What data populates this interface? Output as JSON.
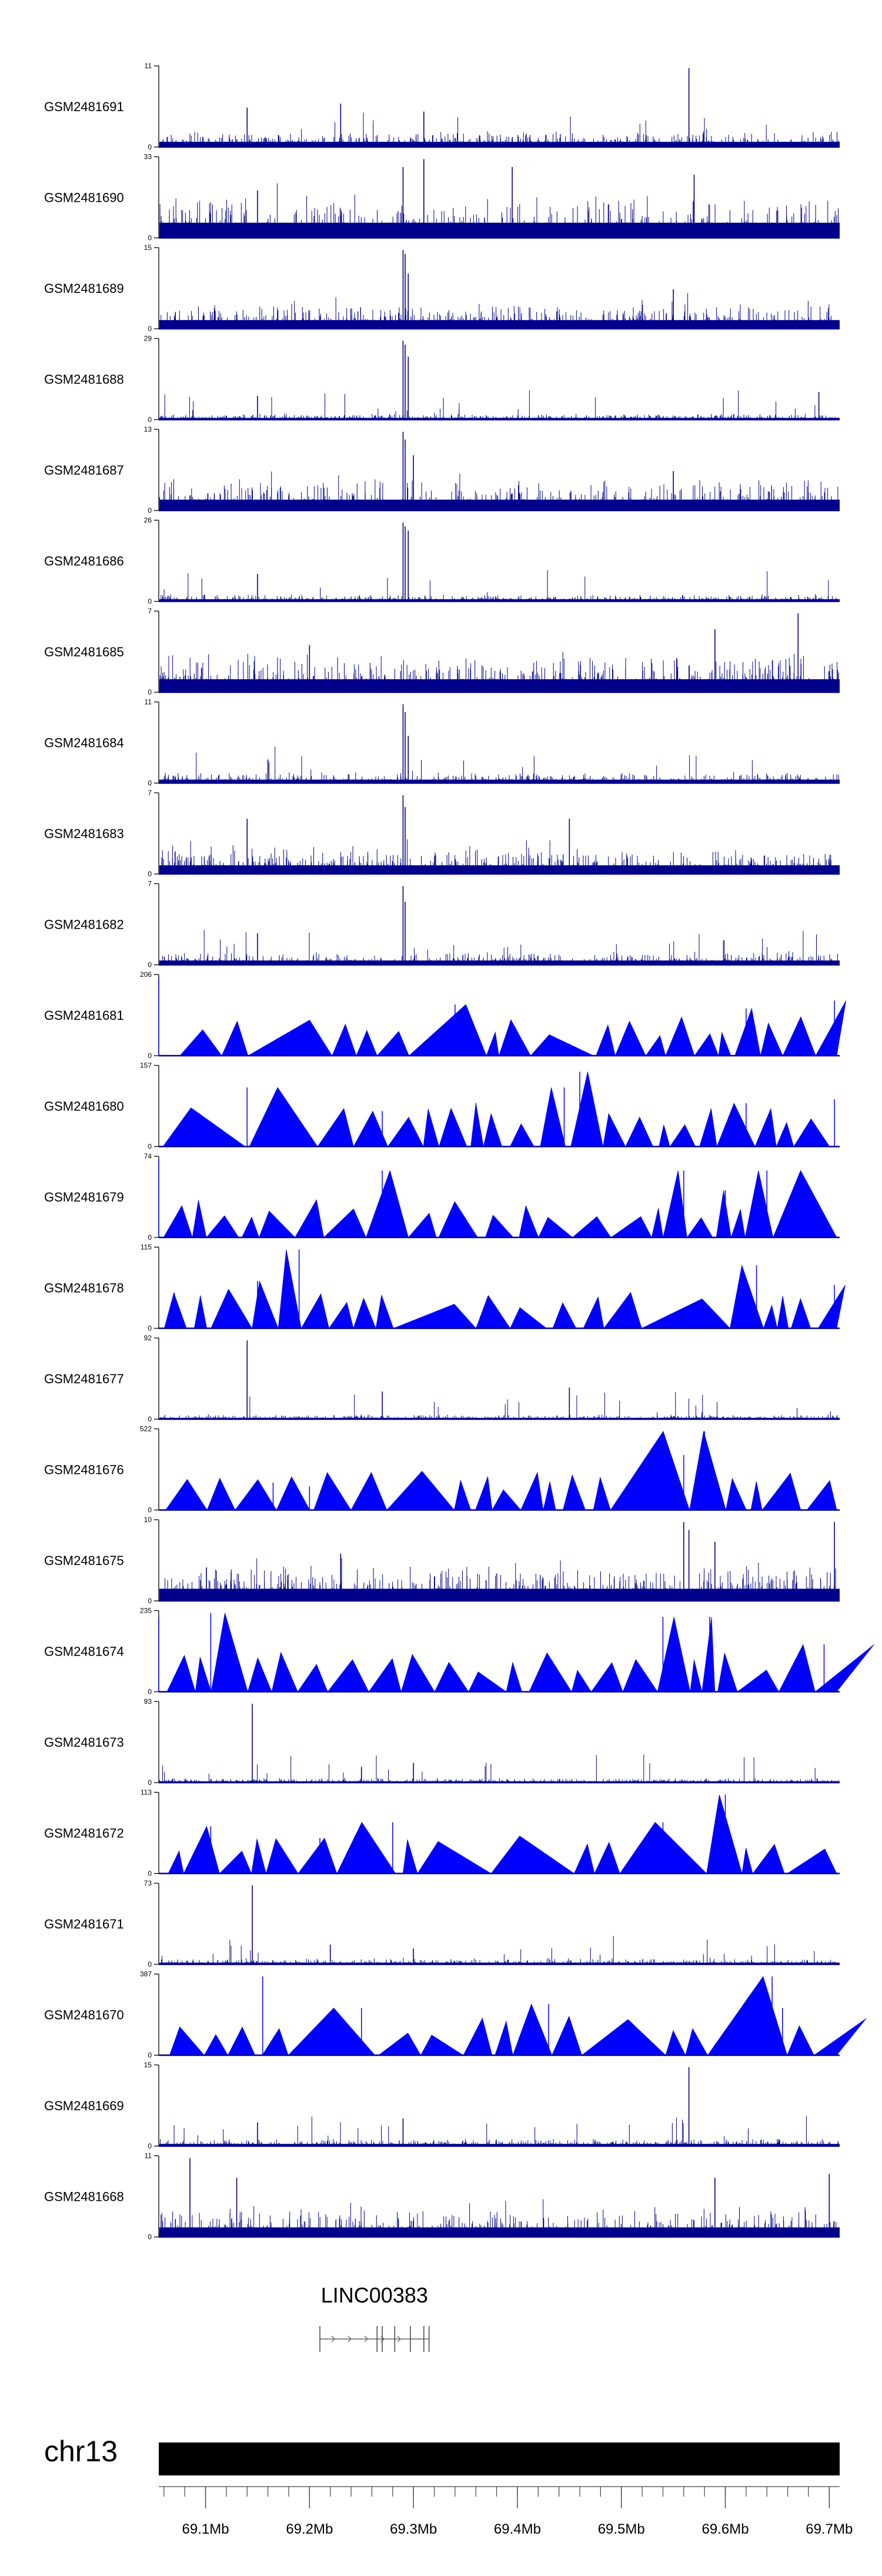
{
  "chart_data": {
    "type": "genome-browser-tracks",
    "chromosome": "chr13",
    "x_range_mb": [
      69.055,
      69.71
    ],
    "x_ticks": [
      "69.1Mb",
      "69.2Mb",
      "69.3Mb",
      "69.4Mb",
      "69.5Mb",
      "69.6Mb",
      "69.7Mb"
    ],
    "x_tick_values_mb": [
      69.1,
      69.2,
      69.3,
      69.4,
      69.5,
      69.6,
      69.7
    ],
    "colors": {
      "signal_dark": "#00008b",
      "signal_fill": "#0000ff",
      "axis": "#000000"
    },
    "tracks": [
      {
        "name": "GSM2481691",
        "ymax": 11,
        "style": "bars",
        "density": 0.55,
        "base": 0.12,
        "peaks": [
          [
            69.23,
            0.55
          ],
          [
            69.565,
            1.0
          ],
          [
            69.31,
            0.45
          ],
          [
            69.14,
            0.5
          ]
        ]
      },
      {
        "name": "GSM2481690",
        "ymax": 33,
        "style": "spiky",
        "density": 0.35,
        "base": 0.35,
        "peaks": [
          [
            69.31,
            1.0
          ],
          [
            69.29,
            0.9
          ],
          [
            69.395,
            0.9
          ],
          [
            69.57,
            0.8
          ],
          [
            69.15,
            0.6
          ]
        ]
      },
      {
        "name": "GSM2481689",
        "ymax": 15,
        "style": "bars",
        "density": 0.6,
        "base": 0.2,
        "peaks": [
          [
            69.29,
            1.0
          ],
          [
            69.292,
            0.95
          ],
          [
            69.295,
            0.7
          ],
          [
            69.55,
            0.5
          ]
        ]
      },
      {
        "name": "GSM2481688",
        "ymax": 29,
        "style": "bars",
        "density": 0.45,
        "base": 0.04,
        "peaks": [
          [
            69.29,
            1.0
          ],
          [
            69.292,
            0.95
          ],
          [
            69.295,
            0.8
          ],
          [
            69.15,
            0.3
          ],
          [
            69.69,
            0.35
          ]
        ]
      },
      {
        "name": "GSM2481687",
        "ymax": 13,
        "style": "bars",
        "density": 0.6,
        "base": 0.25,
        "peaks": [
          [
            69.29,
            1.0
          ],
          [
            69.292,
            0.9
          ],
          [
            69.3,
            0.7
          ],
          [
            69.55,
            0.5
          ]
        ]
      },
      {
        "name": "GSM2481686",
        "ymax": 26,
        "style": "bars",
        "density": 0.45,
        "base": 0.05,
        "peaks": [
          [
            69.29,
            1.0
          ],
          [
            69.292,
            0.95
          ],
          [
            69.295,
            0.9
          ],
          [
            69.15,
            0.35
          ]
        ]
      },
      {
        "name": "GSM2481685",
        "ymax": 7,
        "style": "bars",
        "density": 0.7,
        "base": 0.3,
        "peaks": [
          [
            69.67,
            1.0
          ],
          [
            69.59,
            0.8
          ],
          [
            69.2,
            0.6
          ]
        ]
      },
      {
        "name": "GSM2481684",
        "ymax": 11,
        "style": "bars",
        "density": 0.5,
        "base": 0.08,
        "peaks": [
          [
            69.29,
            1.0
          ],
          [
            69.292,
            0.9
          ],
          [
            69.295,
            0.6
          ],
          [
            69.16,
            0.3
          ]
        ]
      },
      {
        "name": "GSM2481683",
        "ymax": 7,
        "style": "bars",
        "density": 0.6,
        "base": 0.2,
        "peaks": [
          [
            69.29,
            1.0
          ],
          [
            69.292,
            0.85
          ],
          [
            69.14,
            0.7
          ],
          [
            69.45,
            0.7
          ]
        ]
      },
      {
        "name": "GSM2481682",
        "ymax": 7,
        "style": "bars",
        "density": 0.5,
        "base": 0.1,
        "peaks": [
          [
            69.29,
            1.0
          ],
          [
            69.292,
            0.8
          ],
          [
            69.15,
            0.4
          ]
        ]
      },
      {
        "name": "GSM2481681",
        "ymax": 206,
        "style": "triangles",
        "density": 0.0,
        "base": 0.0,
        "peaks": [
          [
            69.055,
            1.0
          ],
          [
            69.34,
            0.65
          ],
          [
            69.62,
            0.6
          ],
          [
            69.705,
            0.7
          ]
        ]
      },
      {
        "name": "GSM2481680",
        "ymax": 157,
        "style": "triangles",
        "density": 0.0,
        "base": 0.0,
        "peaks": [
          [
            69.14,
            0.75
          ],
          [
            69.27,
            0.45
          ],
          [
            69.36,
            0.55
          ],
          [
            69.445,
            0.75
          ],
          [
            69.46,
            0.95
          ],
          [
            69.62,
            0.55
          ],
          [
            69.705,
            0.6
          ]
        ]
      },
      {
        "name": "GSM2481679",
        "ymax": 74,
        "style": "triangles",
        "density": 0.0,
        "base": 0.0,
        "peaks": [
          [
            69.055,
            1.0
          ],
          [
            69.27,
            0.85
          ],
          [
            69.56,
            0.85
          ],
          [
            69.64,
            0.85
          ],
          [
            69.6,
            0.6
          ]
        ]
      },
      {
        "name": "GSM2481678",
        "ymax": 115,
        "style": "triangles",
        "density": 0.0,
        "base": 0.0,
        "peaks": [
          [
            69.19,
            1.0
          ],
          [
            69.07,
            0.45
          ],
          [
            69.15,
            0.6
          ],
          [
            69.63,
            0.8
          ],
          [
            69.705,
            0.55
          ]
        ]
      },
      {
        "name": "GSM2481677",
        "ymax": 92,
        "style": "bars",
        "density": 0.35,
        "base": 0.03,
        "peaks": [
          [
            69.14,
            1.0
          ],
          [
            69.45,
            0.4
          ],
          [
            69.27,
            0.35
          ]
        ]
      },
      {
        "name": "GSM2481676",
        "ymax": 522,
        "style": "triangles",
        "density": 0.0,
        "base": 0.0,
        "peaks": [
          [
            69.58,
            1.0
          ],
          [
            69.56,
            0.7
          ],
          [
            69.165,
            0.35
          ],
          [
            69.2,
            0.3
          ],
          [
            69.63,
            0.35
          ]
        ]
      },
      {
        "name": "GSM2481675",
        "ymax": 10,
        "style": "bars",
        "density": 0.6,
        "base": 0.28,
        "peaks": [
          [
            69.56,
            1.0
          ],
          [
            69.565,
            0.9
          ],
          [
            69.59,
            0.75
          ],
          [
            69.705,
            1.0
          ],
          [
            69.23,
            0.6
          ]
        ]
      },
      {
        "name": "GSM2481674",
        "ymax": 235,
        "style": "triangles",
        "density": 0.0,
        "base": 0.0,
        "peaks": [
          [
            69.105,
            1.0
          ],
          [
            69.055,
            0.95
          ],
          [
            69.54,
            0.95
          ],
          [
            69.585,
            0.95
          ],
          [
            69.695,
            0.6
          ]
        ]
      },
      {
        "name": "GSM2481673",
        "ymax": 93,
        "style": "bars",
        "density": 0.35,
        "base": 0.03,
        "peaks": [
          [
            69.145,
            1.0
          ],
          [
            69.3,
            0.25
          ],
          [
            69.25,
            0.2
          ]
        ]
      },
      {
        "name": "GSM2481672",
        "ymax": 113,
        "style": "triangles",
        "density": 0.0,
        "base": 0.0,
        "peaks": [
          [
            69.6,
            1.0
          ],
          [
            69.54,
            0.65
          ],
          [
            69.28,
            0.65
          ],
          [
            69.21,
            0.45
          ],
          [
            69.105,
            0.6
          ]
        ]
      },
      {
        "name": "GSM2481671",
        "ymax": 73,
        "style": "bars",
        "density": 0.35,
        "base": 0.04,
        "peaks": [
          [
            69.145,
            1.0
          ],
          [
            69.22,
            0.25
          ],
          [
            69.3,
            0.2
          ]
        ]
      },
      {
        "name": "GSM2481670",
        "ymax": 387,
        "style": "triangles",
        "density": 0.0,
        "base": 0.0,
        "peaks": [
          [
            69.155,
            1.0
          ],
          [
            69.645,
            1.0
          ],
          [
            69.25,
            0.6
          ],
          [
            69.43,
            0.65
          ],
          [
            69.655,
            0.6
          ]
        ]
      },
      {
        "name": "GSM2481669",
        "ymax": 15,
        "style": "bars",
        "density": 0.45,
        "base": 0.05,
        "peaks": [
          [
            69.565,
            1.0
          ],
          [
            69.29,
            0.35
          ],
          [
            69.15,
            0.3
          ]
        ]
      },
      {
        "name": "GSM2481668",
        "ymax": 11,
        "style": "bars",
        "density": 0.6,
        "base": 0.22,
        "peaks": [
          [
            69.085,
            1.0
          ],
          [
            69.13,
            0.75
          ],
          [
            69.59,
            0.75
          ],
          [
            69.7,
            0.8
          ]
        ]
      }
    ],
    "gene": {
      "name": "LINC00383",
      "start_mb": 69.21,
      "end_mb": 69.315,
      "exons_mb": [
        69.21,
        69.265,
        69.27,
        69.282,
        69.297,
        69.31,
        69.315
      ]
    }
  }
}
